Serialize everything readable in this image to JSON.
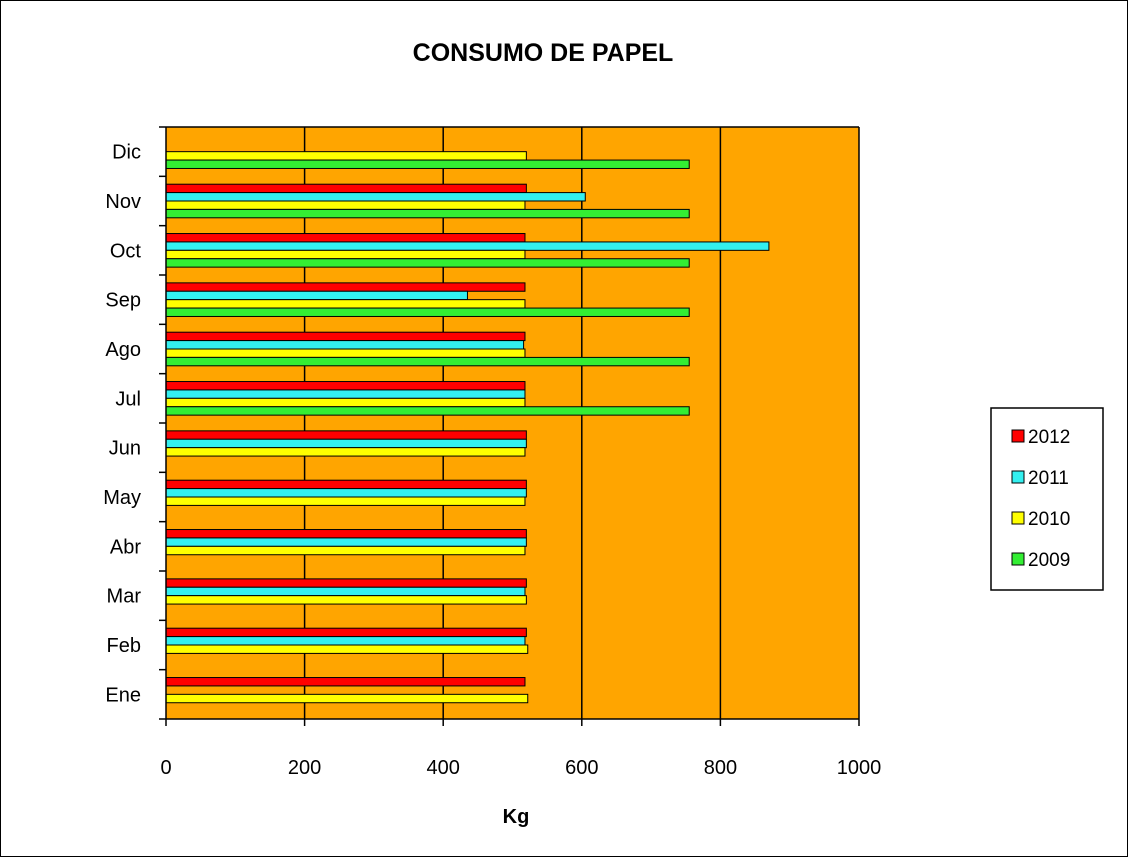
{
  "chart_data": {
    "type": "bar",
    "orientation": "horizontal",
    "title": "CONSUMO DE PAPEL",
    "xlabel": "Kg",
    "ylabel": "",
    "xlim": [
      0,
      1000
    ],
    "x_ticks": [
      "0",
      "200",
      "400",
      "600",
      "800",
      "1000"
    ],
    "grid": "vertical",
    "legend_position": "right",
    "plot_background": "#FFA500",
    "categories": [
      "Ene",
      "Feb",
      "Mar",
      "Abr",
      "May",
      "Jun",
      "Jul",
      "Ago",
      "Sep",
      "Oct",
      "Nov",
      "Dic"
    ],
    "series": [
      {
        "name": "2012",
        "color": "#FF0000",
        "values": [
          518,
          520,
          520,
          520,
          520,
          520,
          518,
          518,
          518,
          518,
          520,
          null
        ]
      },
      {
        "name": "2011",
        "color": "#33F0F0",
        "values": [
          null,
          518,
          518,
          520,
          520,
          520,
          518,
          516,
          435,
          870,
          605,
          null
        ]
      },
      {
        "name": "2010",
        "color": "#FFFF00",
        "values": [
          522,
          522,
          520,
          518,
          518,
          518,
          518,
          518,
          518,
          518,
          518,
          520
        ]
      },
      {
        "name": "2009",
        "color": "#33EE33",
        "values": [
          null,
          null,
          null,
          null,
          null,
          null,
          755,
          755,
          755,
          755,
          755,
          755
        ]
      }
    ]
  }
}
